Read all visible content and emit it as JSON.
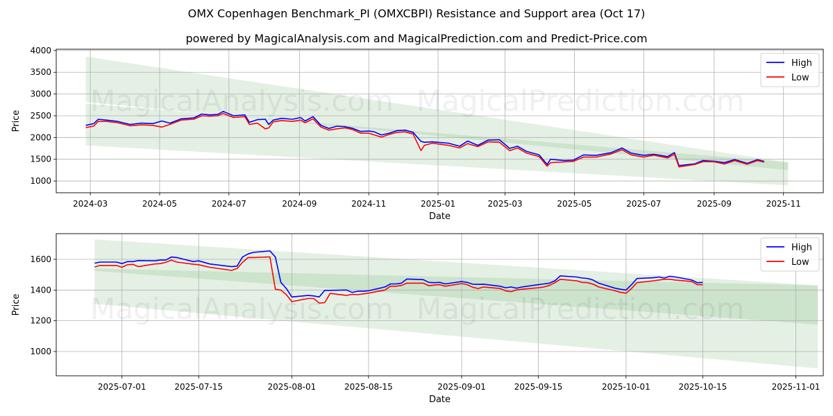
{
  "title": "OMX Copenhagen Benchmark_PI (OMXCBPI) Resistance and Support area (Oct 17)",
  "subtitle": "powered by MagicalAnalysis.com and MagicalPrediction.com and Predict-Price.com",
  "watermarks": [
    "MagicalAnalysis.com",
    "MagicalPrediction.com"
  ],
  "colors": {
    "high": "#0000ff",
    "low": "#ff0000",
    "band": "#2e8b2e"
  },
  "chart_data": [
    {
      "type": "line",
      "xlabel": "Date",
      "ylabel": "Price",
      "xlim": [
        "2024-01-31",
        "2025-12-06"
      ],
      "ylim": [
        730,
        4030
      ],
      "yticks": [
        1000,
        1500,
        2000,
        2500,
        3000,
        3500,
        4000
      ],
      "xticks": [
        "2024-03-01",
        "2024-05-01",
        "2024-07-01",
        "2024-09-01",
        "2024-11-01",
        "2025-01-01",
        "2025-03-01",
        "2025-05-01",
        "2025-07-01",
        "2025-09-01",
        "2025-11-01"
      ],
      "xtick_labels": [
        "2024-03",
        "2024-05",
        "2024-07",
        "2024-09",
        "2024-11",
        "2025-01",
        "2025-03",
        "2025-05",
        "2025-07",
        "2025-09",
        "2025-11"
      ],
      "grid": true,
      "legend": {
        "position": "top-right",
        "entries": [
          "High",
          "Low"
        ]
      },
      "bands": [
        {
          "name": "resistance",
          "x": [
            "2024-02-26",
            "2025-11-05"
          ],
          "upper": [
            3860,
            1430
          ],
          "lower": [
            2820,
            1250
          ]
        },
        {
          "name": "support",
          "x": [
            "2024-02-26",
            "2025-11-05"
          ],
          "upper": [
            2780,
            1430
          ],
          "lower": [
            1820,
            900
          ]
        }
      ],
      "series": [
        {
          "name": "High",
          "x": [
            "2024-02-26",
            "2024-03-04",
            "2024-03-08",
            "2024-03-15",
            "2024-03-25",
            "2024-04-05",
            "2024-04-15",
            "2024-04-25",
            "2024-05-03",
            "2024-05-10",
            "2024-05-20",
            "2024-05-31",
            "2024-06-07",
            "2024-06-14",
            "2024-06-21",
            "2024-06-26",
            "2024-07-05",
            "2024-07-15",
            "2024-07-19",
            "2024-07-26",
            "2024-08-02",
            "2024-08-05",
            "2024-08-09",
            "2024-08-16",
            "2024-08-26",
            "2024-09-02",
            "2024-09-06",
            "2024-09-13",
            "2024-09-20",
            "2024-09-27",
            "2024-10-04",
            "2024-10-11",
            "2024-10-18",
            "2024-10-25",
            "2024-11-01",
            "2024-11-06",
            "2024-11-12",
            "2024-11-19",
            "2024-11-26",
            "2024-12-03",
            "2024-12-10",
            "2024-12-17",
            "2024-12-20",
            "2024-12-27",
            "2025-01-10",
            "2025-01-20",
            "2025-01-27",
            "2025-02-05",
            "2025-02-14",
            "2025-02-24",
            "2025-03-05",
            "2025-03-12",
            "2025-03-20",
            "2025-03-31",
            "2025-04-07",
            "2025-04-10",
            "2025-04-22",
            "2025-04-30",
            "2025-05-09",
            "2025-05-20",
            "2025-06-02",
            "2025-06-12",
            "2025-06-20",
            "2025-07-01",
            "2025-07-10",
            "2025-07-22",
            "2025-07-28",
            "2025-08-01",
            "2025-08-15",
            "2025-08-22",
            "2025-09-01",
            "2025-09-10",
            "2025-09-19",
            "2025-09-30",
            "2025-10-09",
            "2025-10-15"
          ],
          "values": [
            2280,
            2320,
            2420,
            2400,
            2370,
            2300,
            2330,
            2320,
            2380,
            2330,
            2430,
            2450,
            2540,
            2520,
            2530,
            2600,
            2500,
            2520,
            2350,
            2410,
            2420,
            2300,
            2400,
            2440,
            2420,
            2460,
            2380,
            2480,
            2280,
            2210,
            2260,
            2250,
            2210,
            2140,
            2150,
            2130,
            2060,
            2100,
            2160,
            2170,
            2120,
            1910,
            1890,
            1900,
            1870,
            1800,
            1920,
            1820,
            1940,
            1950,
            1750,
            1800,
            1680,
            1600,
            1380,
            1500,
            1470,
            1480,
            1600,
            1590,
            1650,
            1760,
            1640,
            1590,
            1615,
            1560,
            1655,
            1355,
            1395,
            1470,
            1455,
            1420,
            1492,
            1405,
            1490,
            1450
          ]
        },
        {
          "name": "Low",
          "x": [
            "2024-02-26",
            "2024-03-04",
            "2024-03-08",
            "2024-03-15",
            "2024-03-25",
            "2024-04-05",
            "2024-04-15",
            "2024-04-25",
            "2024-05-03",
            "2024-05-10",
            "2024-05-20",
            "2024-05-31",
            "2024-06-07",
            "2024-06-14",
            "2024-06-21",
            "2024-06-26",
            "2024-07-05",
            "2024-07-15",
            "2024-07-19",
            "2024-07-26",
            "2024-08-02",
            "2024-08-05",
            "2024-08-09",
            "2024-08-16",
            "2024-08-26",
            "2024-09-02",
            "2024-09-06",
            "2024-09-13",
            "2024-09-20",
            "2024-09-27",
            "2024-10-04",
            "2024-10-11",
            "2024-10-18",
            "2024-10-25",
            "2024-11-01",
            "2024-11-06",
            "2024-11-12",
            "2024-11-19",
            "2024-11-26",
            "2024-12-03",
            "2024-12-10",
            "2024-12-17",
            "2024-12-20",
            "2024-12-27",
            "2025-01-10",
            "2025-01-20",
            "2025-01-27",
            "2025-02-05",
            "2025-02-14",
            "2025-02-24",
            "2025-03-05",
            "2025-03-12",
            "2025-03-20",
            "2025-03-31",
            "2025-04-07",
            "2025-04-10",
            "2025-04-22",
            "2025-04-30",
            "2025-05-09",
            "2025-05-20",
            "2025-06-02",
            "2025-06-12",
            "2025-06-20",
            "2025-07-01",
            "2025-07-10",
            "2025-07-22",
            "2025-07-28",
            "2025-08-01",
            "2025-08-15",
            "2025-08-22",
            "2025-09-01",
            "2025-09-10",
            "2025-09-19",
            "2025-09-30",
            "2025-10-09",
            "2025-10-15"
          ],
          "values": [
            2230,
            2260,
            2370,
            2370,
            2340,
            2270,
            2290,
            2280,
            2240,
            2300,
            2400,
            2420,
            2500,
            2490,
            2500,
            2550,
            2460,
            2480,
            2300,
            2330,
            2200,
            2220,
            2360,
            2390,
            2370,
            2400,
            2340,
            2430,
            2240,
            2170,
            2200,
            2220,
            2180,
            2100,
            2100,
            2060,
            2010,
            2070,
            2120,
            2130,
            2080,
            1700,
            1820,
            1870,
            1820,
            1760,
            1860,
            1790,
            1900,
            1890,
            1700,
            1760,
            1640,
            1560,
            1340,
            1420,
            1440,
            1450,
            1550,
            1550,
            1620,
            1720,
            1600,
            1550,
            1595,
            1530,
            1616,
            1325,
            1380,
            1445,
            1442,
            1390,
            1470,
            1385,
            1470,
            1435
          ]
        }
      ]
    },
    {
      "type": "line",
      "xlabel": "Date",
      "ylabel": "Price",
      "xlim": [
        "2025-06-19",
        "2025-11-06"
      ],
      "ylim": [
        842,
        1767
      ],
      "yticks": [
        1000,
        1200,
        1400,
        1600
      ],
      "xticks": [
        "2025-07-01",
        "2025-07-15",
        "2025-08-01",
        "2025-08-15",
        "2025-09-01",
        "2025-09-15",
        "2025-10-01",
        "2025-10-15",
        "2025-11-01"
      ],
      "xtick_labels": [
        "2025-07-01",
        "2025-07-15",
        "2025-08-01",
        "2025-08-15",
        "2025-09-01",
        "2025-09-15",
        "2025-10-01",
        "2025-10-15",
        "2025-11-01"
      ],
      "grid": true,
      "legend": {
        "position": "top-right",
        "entries": [
          "High",
          "Low"
        ]
      },
      "bands": [
        {
          "name": "resistance",
          "x": [
            "2025-06-26",
            "2025-11-05"
          ],
          "upper": [
            1730,
            1430
          ],
          "lower": [
            1525,
            1175
          ]
        },
        {
          "name": "support",
          "x": [
            "2025-06-26",
            "2025-11-05"
          ],
          "upper": [
            1540,
            1430
          ],
          "lower": [
            1310,
            890
          ]
        }
      ],
      "series": [
        {
          "name": "High",
          "x": [
            "2025-06-26",
            "2025-06-27",
            "2025-06-30",
            "2025-07-01",
            "2025-07-02",
            "2025-07-03",
            "2025-07-04",
            "2025-07-07",
            "2025-07-08",
            "2025-07-09",
            "2025-07-10",
            "2025-07-11",
            "2025-07-14",
            "2025-07-15",
            "2025-07-17",
            "2025-07-21",
            "2025-07-22",
            "2025-07-23",
            "2025-07-24",
            "2025-07-25",
            "2025-07-28",
            "2025-07-29",
            "2025-07-30",
            "2025-07-31",
            "2025-08-01",
            "2025-08-04",
            "2025-08-05",
            "2025-08-06",
            "2025-08-07",
            "2025-08-08",
            "2025-08-11",
            "2025-08-12",
            "2025-08-13",
            "2025-08-14",
            "2025-08-15",
            "2025-08-18",
            "2025-08-19",
            "2025-08-20",
            "2025-08-21",
            "2025-08-22",
            "2025-08-25",
            "2025-08-26",
            "2025-08-27",
            "2025-08-28",
            "2025-08-29",
            "2025-09-01",
            "2025-09-02",
            "2025-09-03",
            "2025-09-04",
            "2025-09-05",
            "2025-09-08",
            "2025-09-09",
            "2025-09-10",
            "2025-09-11",
            "2025-09-12",
            "2025-09-15",
            "2025-09-16",
            "2025-09-17",
            "2025-09-18",
            "2025-09-19",
            "2025-09-22",
            "2025-09-23",
            "2025-09-24",
            "2025-09-25",
            "2025-09-26",
            "2025-09-29",
            "2025-09-30",
            "2025-10-01",
            "2025-10-02",
            "2025-10-03",
            "2025-10-06",
            "2025-10-07",
            "2025-10-08",
            "2025-10-09",
            "2025-10-10",
            "2025-10-13",
            "2025-10-14",
            "2025-10-15"
          ],
          "values": [
            1575,
            1582,
            1582,
            1572,
            1585,
            1585,
            1592,
            1590,
            1596,
            1595,
            1615,
            1612,
            1585,
            1590,
            1570,
            1552,
            1556,
            1615,
            1635,
            1645,
            1655,
            1615,
            1450,
            1410,
            1355,
            1365,
            1362,
            1355,
            1398,
            1398,
            1400,
            1385,
            1392,
            1392,
            1395,
            1420,
            1440,
            1440,
            1445,
            1472,
            1468,
            1450,
            1448,
            1450,
            1440,
            1455,
            1450,
            1438,
            1437,
            1438,
            1425,
            1415,
            1420,
            1412,
            1420,
            1435,
            1440,
            1445,
            1460,
            1492,
            1485,
            1478,
            1475,
            1465,
            1445,
            1412,
            1405,
            1400,
            1435,
            1475,
            1480,
            1485,
            1478,
            1490,
            1485,
            1465,
            1448,
            1450
          ]
        },
        {
          "name": "Low",
          "x": [
            "2025-06-26",
            "2025-06-27",
            "2025-06-30",
            "2025-07-01",
            "2025-07-02",
            "2025-07-03",
            "2025-07-04",
            "2025-07-07",
            "2025-07-08",
            "2025-07-09",
            "2025-07-10",
            "2025-07-11",
            "2025-07-14",
            "2025-07-15",
            "2025-07-17",
            "2025-07-21",
            "2025-07-22",
            "2025-07-23",
            "2025-07-24",
            "2025-07-25",
            "2025-07-28",
            "2025-07-29",
            "2025-07-30",
            "2025-07-31",
            "2025-08-01",
            "2025-08-04",
            "2025-08-05",
            "2025-08-06",
            "2025-08-07",
            "2025-08-08",
            "2025-08-11",
            "2025-08-12",
            "2025-08-13",
            "2025-08-14",
            "2025-08-15",
            "2025-08-18",
            "2025-08-19",
            "2025-08-20",
            "2025-08-21",
            "2025-08-22",
            "2025-08-25",
            "2025-08-26",
            "2025-08-27",
            "2025-08-28",
            "2025-08-29",
            "2025-09-01",
            "2025-09-02",
            "2025-09-03",
            "2025-09-04",
            "2025-09-05",
            "2025-09-08",
            "2025-09-09",
            "2025-09-10",
            "2025-09-11",
            "2025-09-12",
            "2025-09-15",
            "2025-09-16",
            "2025-09-17",
            "2025-09-18",
            "2025-09-19",
            "2025-09-22",
            "2025-09-23",
            "2025-09-24",
            "2025-09-25",
            "2025-09-26",
            "2025-09-29",
            "2025-09-30",
            "2025-10-01",
            "2025-10-02",
            "2025-10-03",
            "2025-10-06",
            "2025-10-07",
            "2025-10-08",
            "2025-10-09",
            "2025-10-10",
            "2025-10-13",
            "2025-10-14",
            "2025-10-15"
          ],
          "values": [
            1550,
            1560,
            1560,
            1548,
            1565,
            1567,
            1552,
            1570,
            1572,
            1580,
            1595,
            1582,
            1568,
            1565,
            1548,
            1528,
            1540,
            1580,
            1612,
            1612,
            1616,
            1405,
            1400,
            1370,
            1325,
            1345,
            1345,
            1315,
            1318,
            1378,
            1365,
            1372,
            1370,
            1375,
            1380,
            1400,
            1425,
            1425,
            1430,
            1445,
            1445,
            1428,
            1432,
            1435,
            1425,
            1442,
            1435,
            1418,
            1410,
            1420,
            1410,
            1395,
            1390,
            1400,
            1405,
            1415,
            1420,
            1430,
            1448,
            1470,
            1460,
            1450,
            1448,
            1438,
            1420,
            1395,
            1385,
            1380,
            1410,
            1448,
            1460,
            1465,
            1470,
            1470,
            1465,
            1455,
            1435,
            1435
          ]
        }
      ]
    }
  ]
}
